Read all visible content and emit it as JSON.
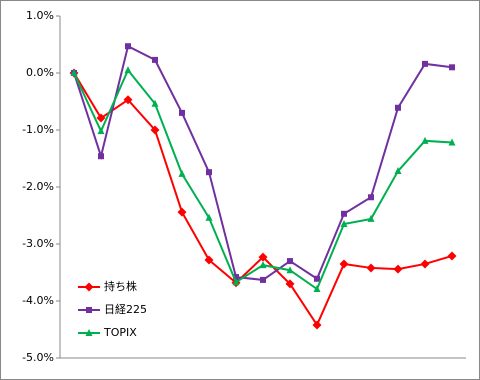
{
  "chart_data": {
    "type": "line",
    "categories": [
      null,
      null,
      null,
      null,
      null,
      null,
      null,
      null,
      null,
      null,
      null,
      null,
      null,
      null,
      null
    ],
    "series": [
      {
        "name": "持ち株",
        "color": "#ff0000",
        "marker": "diamond",
        "values": [
          0,
          -0.79,
          -0.47,
          -1.0,
          -2.44,
          -3.28,
          -3.68,
          -3.23,
          -3.7,
          -4.42,
          -3.35,
          -3.42,
          -3.44,
          -3.35,
          -3.21
        ]
      },
      {
        "name": "日経225",
        "color": "#7030a0",
        "marker": "square",
        "values": [
          0,
          -1.46,
          0.47,
          0.23,
          -0.7,
          -1.74,
          -3.58,
          -3.63,
          -3.3,
          -3.61,
          -2.47,
          -2.18,
          -0.61,
          0.16,
          0.1
        ]
      },
      {
        "name": "TOPIX",
        "color": "#00b050",
        "marker": "triangle",
        "values": [
          0,
          -1.02,
          0.05,
          -0.54,
          -1.77,
          -2.54,
          -3.67,
          -3.37,
          -3.46,
          -3.79,
          -2.65,
          -2.56,
          -1.72,
          -1.19,
          -1.22
        ]
      }
    ],
    "ylim": [
      -5,
      1
    ],
    "yticks": [
      {
        "value": -5,
        "label": "-5.0%"
      },
      {
        "value": -4,
        "label": "-4.0%"
      },
      {
        "value": -3,
        "label": "-3.0%"
      },
      {
        "value": -2,
        "label": "-2.0%"
      },
      {
        "value": -1,
        "label": "-1.0%"
      },
      {
        "value": 0,
        "label": "0.0%"
      },
      {
        "value": 1,
        "label": "1.0%"
      }
    ],
    "legend": "lower-left"
  }
}
